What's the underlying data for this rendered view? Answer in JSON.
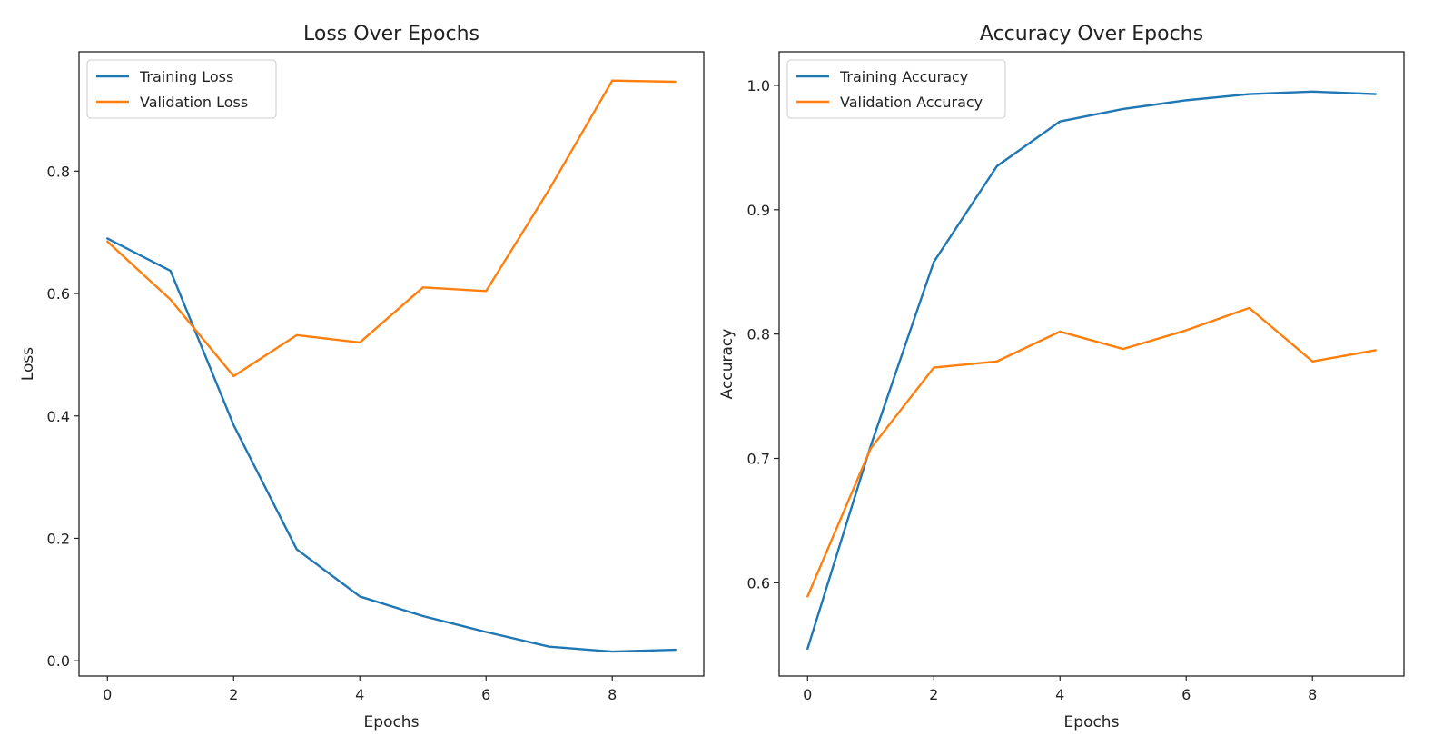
{
  "chart_data": [
    {
      "type": "line",
      "title": "Loss Over Epochs",
      "xlabel": "Epochs",
      "ylabel": "Loss",
      "x": [
        0,
        1,
        2,
        3,
        4,
        5,
        6,
        7,
        8,
        9
      ],
      "xlim": [
        -0.45,
        9.45
      ],
      "ylim": [
        -0.025,
        0.995
      ],
      "xticks": [
        0,
        2,
        4,
        6,
        8
      ],
      "yticks": [
        0.0,
        0.2,
        0.4,
        0.6,
        0.8
      ],
      "ytick_labels": [
        "0.0",
        "0.2",
        "0.4",
        "0.6",
        "0.8"
      ],
      "grid": false,
      "legend": "upper left",
      "series": [
        {
          "name": "Training Loss",
          "color": "#1f77b4",
          "values": [
            0.69,
            0.637,
            0.385,
            0.182,
            0.105,
            0.073,
            0.047,
            0.023,
            0.015,
            0.018
          ]
        },
        {
          "name": "Validation Loss",
          "color": "#ff7f0e",
          "values": [
            0.685,
            0.59,
            0.465,
            0.532,
            0.52,
            0.61,
            0.604,
            0.77,
            0.948,
            0.946
          ]
        }
      ]
    },
    {
      "type": "line",
      "title": "Accuracy Over Epochs",
      "xlabel": "Epochs",
      "ylabel": "Accuracy",
      "x": [
        0,
        1,
        2,
        3,
        4,
        5,
        6,
        7,
        8,
        9
      ],
      "xlim": [
        -0.45,
        9.45
      ],
      "ylim": [
        0.525,
        1.027
      ],
      "xticks": [
        0,
        2,
        4,
        6,
        8
      ],
      "yticks": [
        0.6,
        0.7,
        0.8,
        0.9,
        1.0
      ],
      "ytick_labels": [
        "0.6",
        "0.7",
        "0.8",
        "0.9",
        "1.0"
      ],
      "grid": false,
      "legend": "upper left",
      "series": [
        {
          "name": "Training Accuracy",
          "color": "#1f77b4",
          "values": [
            0.547,
            0.71,
            0.858,
            0.935,
            0.971,
            0.981,
            0.988,
            0.993,
            0.995,
            0.993
          ]
        },
        {
          "name": "Validation Accuracy",
          "color": "#ff7f0e",
          "values": [
            0.589,
            0.708,
            0.773,
            0.778,
            0.802,
            0.788,
            0.803,
            0.821,
            0.778,
            0.787
          ]
        }
      ]
    }
  ]
}
